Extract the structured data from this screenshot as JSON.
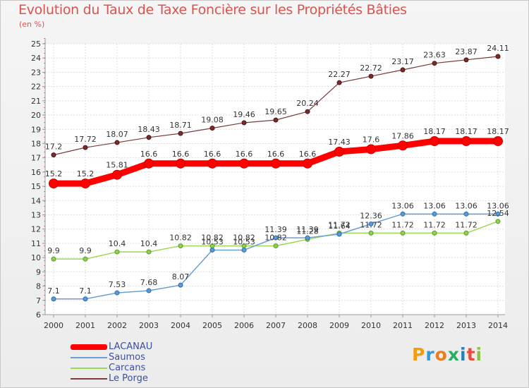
{
  "title": "Evolution du Taux de Taxe Foncière sur les Propriétés Bâties",
  "unit_label": "(en %)",
  "logo": {
    "text": "Proxiti",
    "colors": [
      "#f39c12",
      "#3498db",
      "#e67e22",
      "#27ae60",
      "#2980b9",
      "#e74c3c",
      "#8bc34a"
    ]
  },
  "chart_data": {
    "type": "line",
    "title": "Evolution du Taux de Taxe Foncière sur les Propriétés Bâties",
    "ylabel": "(en %)",
    "xlabel": "",
    "x": [
      "2000",
      "2001",
      "2002",
      "2003",
      "2004",
      "2005",
      "2006",
      "2007",
      "2008",
      "2009",
      "2010",
      "2011",
      "2012",
      "2013",
      "2014"
    ],
    "ylim": [
      6,
      25
    ],
    "yticks": [
      "6",
      "7",
      "8",
      "9",
      "10",
      "11",
      "12",
      "13",
      "14",
      "15",
      "16",
      "17",
      "18",
      "19",
      "20",
      "21",
      "22",
      "23",
      "24",
      "25"
    ],
    "grid": true,
    "legend_position": "bottom-left",
    "series": [
      {
        "name": "LACANAU",
        "color": "#ff0000",
        "values": [
          15.2,
          15.2,
          15.81,
          16.6,
          16.6,
          16.6,
          16.6,
          16.6,
          16.6,
          17.43,
          17.6,
          17.86,
          18.17,
          18.17,
          18.17
        ],
        "labels": [
          "15.2",
          "15.2",
          "15.81",
          "16.6",
          "16.6",
          "16.6",
          "16.6",
          "16.6",
          "16.6",
          "17.43",
          "17.6",
          "17.86",
          "18.17",
          "18.17",
          "18.17"
        ]
      },
      {
        "name": "Saumos",
        "color": "#6a9fd4",
        "values": [
          7.1,
          7.1,
          7.53,
          7.68,
          8.07,
          10.53,
          10.53,
          11.39,
          11.39,
          11.64,
          12.36,
          13.06,
          13.06,
          13.06,
          13.06
        ],
        "labels": [
          "7.1",
          "7.1",
          "7.53",
          "7.68",
          "8.07",
          "10.53",
          "10.53",
          "11.39",
          "11.39",
          "11.64",
          "12.36",
          "13.06",
          "13.06",
          "13.06",
          "13.06"
        ]
      },
      {
        "name": "Carcans",
        "color": "#9ad85a",
        "values": [
          9.9,
          9.9,
          10.4,
          10.4,
          10.82,
          10.82,
          10.82,
          10.82,
          11.28,
          11.72,
          11.72,
          11.72,
          11.72,
          11.72,
          12.54
        ],
        "labels": [
          "9.9",
          "9.9",
          "10.4",
          "10.4",
          "10.82",
          "10.82",
          "10.82",
          "10.82",
          "11.28",
          "11.72",
          "11.72",
          "11.72",
          "11.72",
          "11.72",
          "12.54"
        ]
      },
      {
        "name": "Le Porge",
        "color": "#7a3b3b",
        "values": [
          17.2,
          17.72,
          18.07,
          18.43,
          18.71,
          19.08,
          19.46,
          19.65,
          20.24,
          22.27,
          22.72,
          23.17,
          23.63,
          23.87,
          24.11
        ],
        "labels": [
          "17.2",
          "17.72",
          "18.07",
          "18.43",
          "18.71",
          "19.08",
          "19.46",
          "19.65",
          "20.24",
          "22.27",
          "22.72",
          "23.17",
          "23.63",
          "23.87",
          "24.11"
        ]
      }
    ]
  }
}
